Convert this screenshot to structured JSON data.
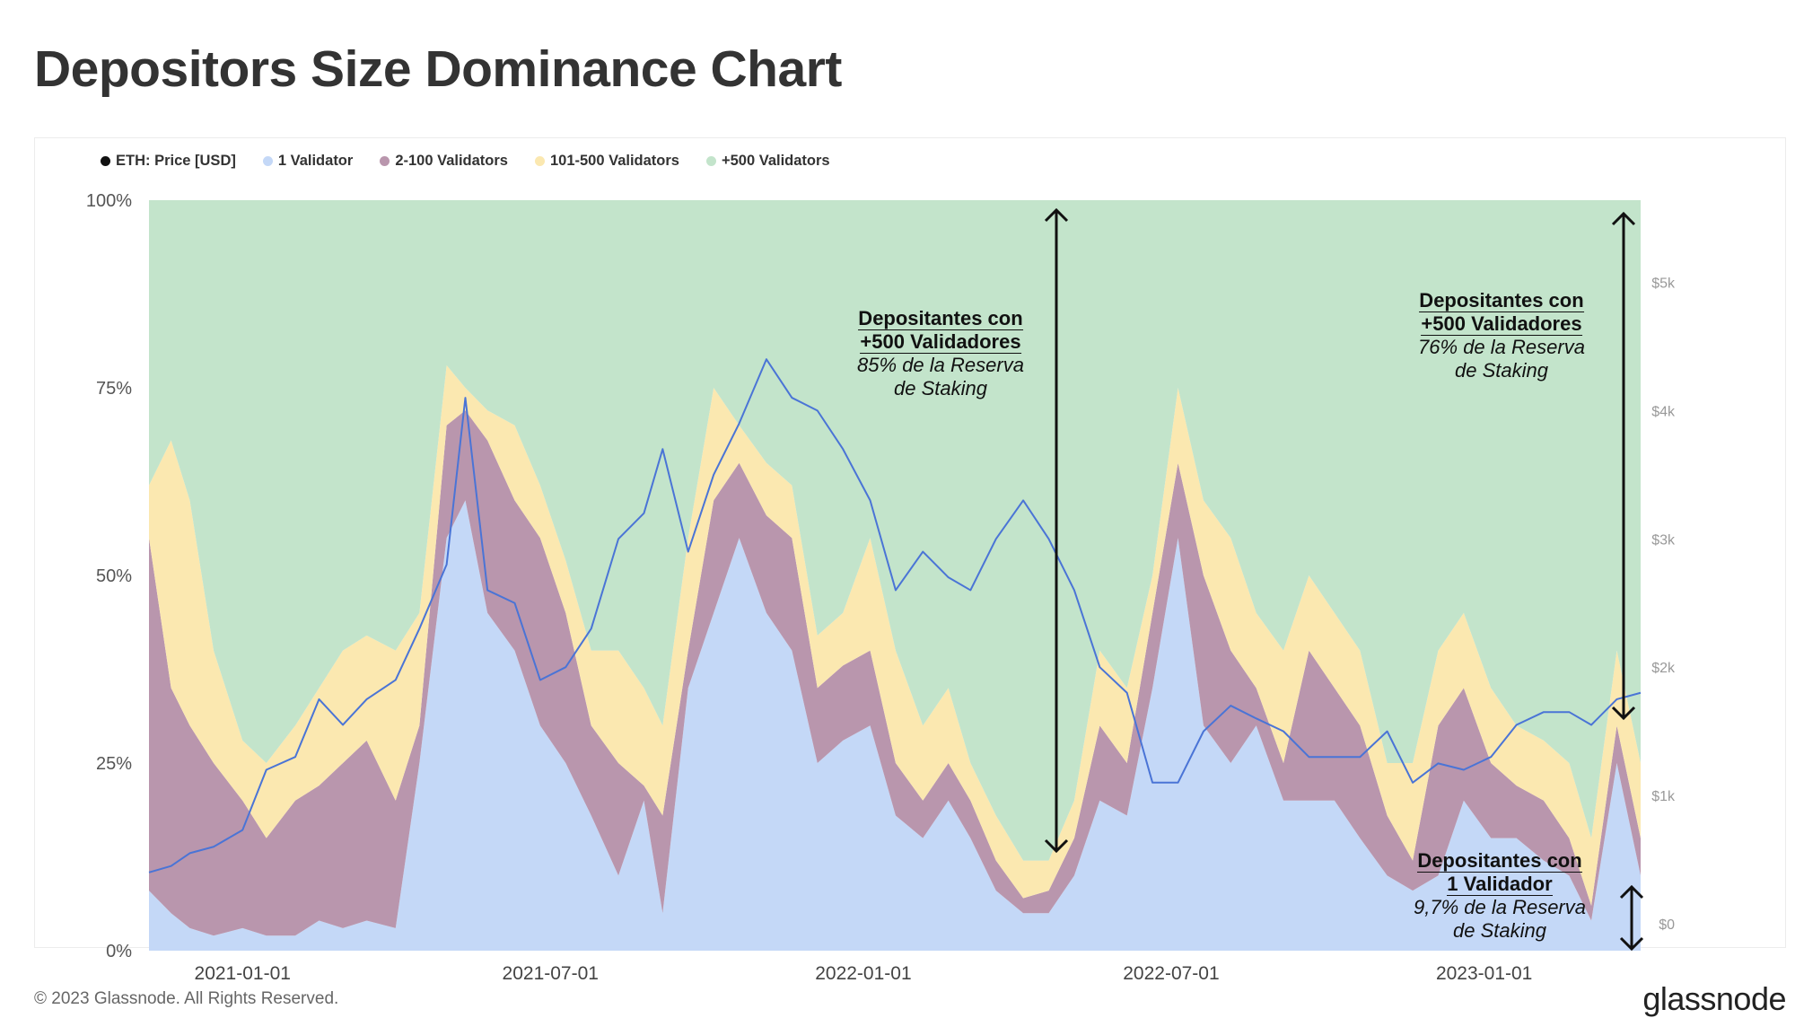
{
  "title": "Depositors Size Dominance Chart",
  "legend": [
    {
      "label": "ETH: Price [USD]",
      "color": "#111111"
    },
    {
      "label": "1 Validator",
      "color": "#c4d8f7"
    },
    {
      "label": "2-100 Validators",
      "color": "#b996ad"
    },
    {
      "label": "101-500 Validators",
      "color": "#fbe8b0"
    },
    {
      "label": "+500 Validators",
      "color": "#c3e4cb"
    }
  ],
  "annotations": [
    {
      "line1": "Depositantes con",
      "line2": "+500 Validadores",
      "line3": "85% de la Reserva",
      "line4": "de Staking"
    },
    {
      "line1": "Depositantes con",
      "line2": "+500 Validadores",
      "line3": "76% de la Reserva",
      "line4": "de Staking"
    },
    {
      "line1": "Depositantes con",
      "line2": "1 Validador",
      "line3": "9,7% de la Reserva",
      "line4": "de Staking"
    }
  ],
  "footer": {
    "copyright": "© 2023 Glassnode. All Rights Reserved.",
    "logo": "glassnode"
  },
  "chart_data": {
    "type": "area",
    "stacked": true,
    "percent": true,
    "title": "Depositors Size Dominance Chart",
    "xlim": [
      "2020-11-07",
      "2023-04-03"
    ],
    "ylim_left": [
      0,
      100
    ],
    "ylim_right": [
      -210,
      5640
    ],
    "grid": false,
    "legend_position": "top-left",
    "x_ticks": [
      "2021-01-01",
      "2021-07-01",
      "2022-01-01",
      "2022-07-01",
      "2023-01-01"
    ],
    "y_ticks_left": [
      {
        "v": 100,
        "label": "100%"
      },
      {
        "v": 75,
        "label": "75%"
      },
      {
        "v": 50,
        "label": "50%"
      },
      {
        "v": 25,
        "label": "25%"
      },
      {
        "v": 0,
        "label": "0%"
      }
    ],
    "y_ticks_right": [
      {
        "v": 5000,
        "label": "$5k"
      },
      {
        "v": 4000,
        "label": "$4k"
      },
      {
        "v": 3000,
        "label": "$3k"
      },
      {
        "v": 2000,
        "label": "$2k"
      },
      {
        "v": 1000,
        "label": "$1k"
      },
      {
        "v": 0,
        "label": "$0"
      }
    ],
    "x": [
      "2020-11-07",
      "2020-11-20",
      "2020-12-01",
      "2020-12-15",
      "2021-01-01",
      "2021-01-15",
      "2021-02-01",
      "2021-02-15",
      "2021-03-01",
      "2021-03-15",
      "2021-04-01",
      "2021-04-15",
      "2021-05-01",
      "2021-05-12",
      "2021-05-25",
      "2021-06-10",
      "2021-06-25",
      "2021-07-10",
      "2021-07-25",
      "2021-08-10",
      "2021-08-25",
      "2021-09-05",
      "2021-09-20",
      "2021-10-05",
      "2021-10-20",
      "2021-11-05",
      "2021-11-20",
      "2021-12-05",
      "2021-12-20",
      "2022-01-05",
      "2022-01-20",
      "2022-02-05",
      "2022-02-20",
      "2022-03-05",
      "2022-03-20",
      "2022-04-05",
      "2022-04-20",
      "2022-05-05",
      "2022-05-20",
      "2022-06-05",
      "2022-06-20",
      "2022-07-05",
      "2022-07-20",
      "2022-08-05",
      "2022-08-20",
      "2022-09-05",
      "2022-09-20",
      "2022-10-05",
      "2022-10-20",
      "2022-11-05",
      "2022-11-20",
      "2022-12-05",
      "2022-12-20",
      "2023-01-05",
      "2023-01-20",
      "2023-02-05",
      "2023-02-20",
      "2023-03-05",
      "2023-03-20",
      "2023-04-03"
    ],
    "series": [
      {
        "name": "1 Validator",
        "color": "#c4d8f7",
        "values": [
          8,
          5,
          3,
          2,
          3,
          2,
          2,
          4,
          3,
          4,
          3,
          25,
          55,
          60,
          45,
          40,
          30,
          25,
          18,
          10,
          20,
          5,
          35,
          45,
          55,
          45,
          40,
          25,
          28,
          30,
          18,
          15,
          20,
          15,
          8,
          5,
          5,
          10,
          20,
          18,
          35,
          55,
          30,
          25,
          30,
          20,
          20,
          20,
          15,
          10,
          8,
          10,
          20,
          15,
          15,
          12,
          10,
          4,
          25,
          10
        ]
      },
      {
        "name": "2-100 Validators",
        "color": "#b996ad",
        "values": [
          47,
          30,
          27,
          23,
          17,
          13,
          18,
          18,
          22,
          24,
          17,
          5,
          15,
          12,
          23,
          20,
          25,
          20,
          12,
          15,
          2,
          13,
          5,
          15,
          10,
          13,
          15,
          10,
          10,
          10,
          7,
          5,
          5,
          5,
          4,
          2,
          3,
          5,
          10,
          7,
          10,
          10,
          20,
          15,
          5,
          5,
          20,
          15,
          15,
          8,
          4,
          20,
          15,
          10,
          7,
          8,
          5,
          2,
          5,
          5
        ]
      },
      {
        "name": "101-500 Validators",
        "color": "#fbe8b0",
        "values": [
          7,
          33,
          30,
          15,
          8,
          10,
          10,
          13,
          15,
          14,
          20,
          15,
          8,
          3,
          4,
          10,
          7,
          7,
          10,
          15,
          13,
          12,
          15,
          15,
          5,
          7,
          7,
          7,
          7,
          15,
          15,
          10,
          10,
          5,
          6,
          5,
          4,
          5,
          10,
          10,
          5,
          10,
          10,
          15,
          10,
          15,
          10,
          10,
          10,
          7,
          13,
          10,
          10,
          10,
          8,
          8,
          10,
          9,
          10,
          10
        ]
      },
      {
        "name": "+500 Validators",
        "color": "#c3e4cb",
        "values": [
          38,
          32,
          40,
          60,
          72,
          75,
          70,
          65,
          60,
          58,
          60,
          55,
          22,
          25,
          28,
          30,
          38,
          48,
          60,
          60,
          65,
          70,
          45,
          25,
          30,
          35,
          38,
          58,
          55,
          45,
          60,
          70,
          65,
          75,
          82,
          88,
          88,
          80,
          60,
          65,
          50,
          25,
          40,
          45,
          55,
          60,
          50,
          55,
          60,
          75,
          75,
          60,
          55,
          65,
          70,
          72,
          75,
          85,
          60,
          75
        ]
      },
      {
        "name": "ETH: Price [USD]",
        "color": "#4a74d6",
        "axis": "right",
        "type": "line",
        "values": [
          400,
          450,
          550,
          600,
          730,
          1200,
          1300,
          1750,
          1550,
          1750,
          1900,
          2300,
          2800,
          4100,
          2600,
          2500,
          1900,
          2000,
          2300,
          3000,
          3200,
          3700,
          2900,
          3500,
          3900,
          4400,
          4100,
          4000,
          3700,
          3300,
          2600,
          2900,
          2700,
          2600,
          3000,
          3300,
          3000,
          2600,
          2000,
          1800,
          1100,
          1100,
          1500,
          1700,
          1600,
          1500,
          1300,
          1300,
          1300,
          1500,
          1100,
          1250,
          1200,
          1300,
          1550,
          1650,
          1650,
          1550,
          1750,
          1800
        ]
      }
    ]
  }
}
